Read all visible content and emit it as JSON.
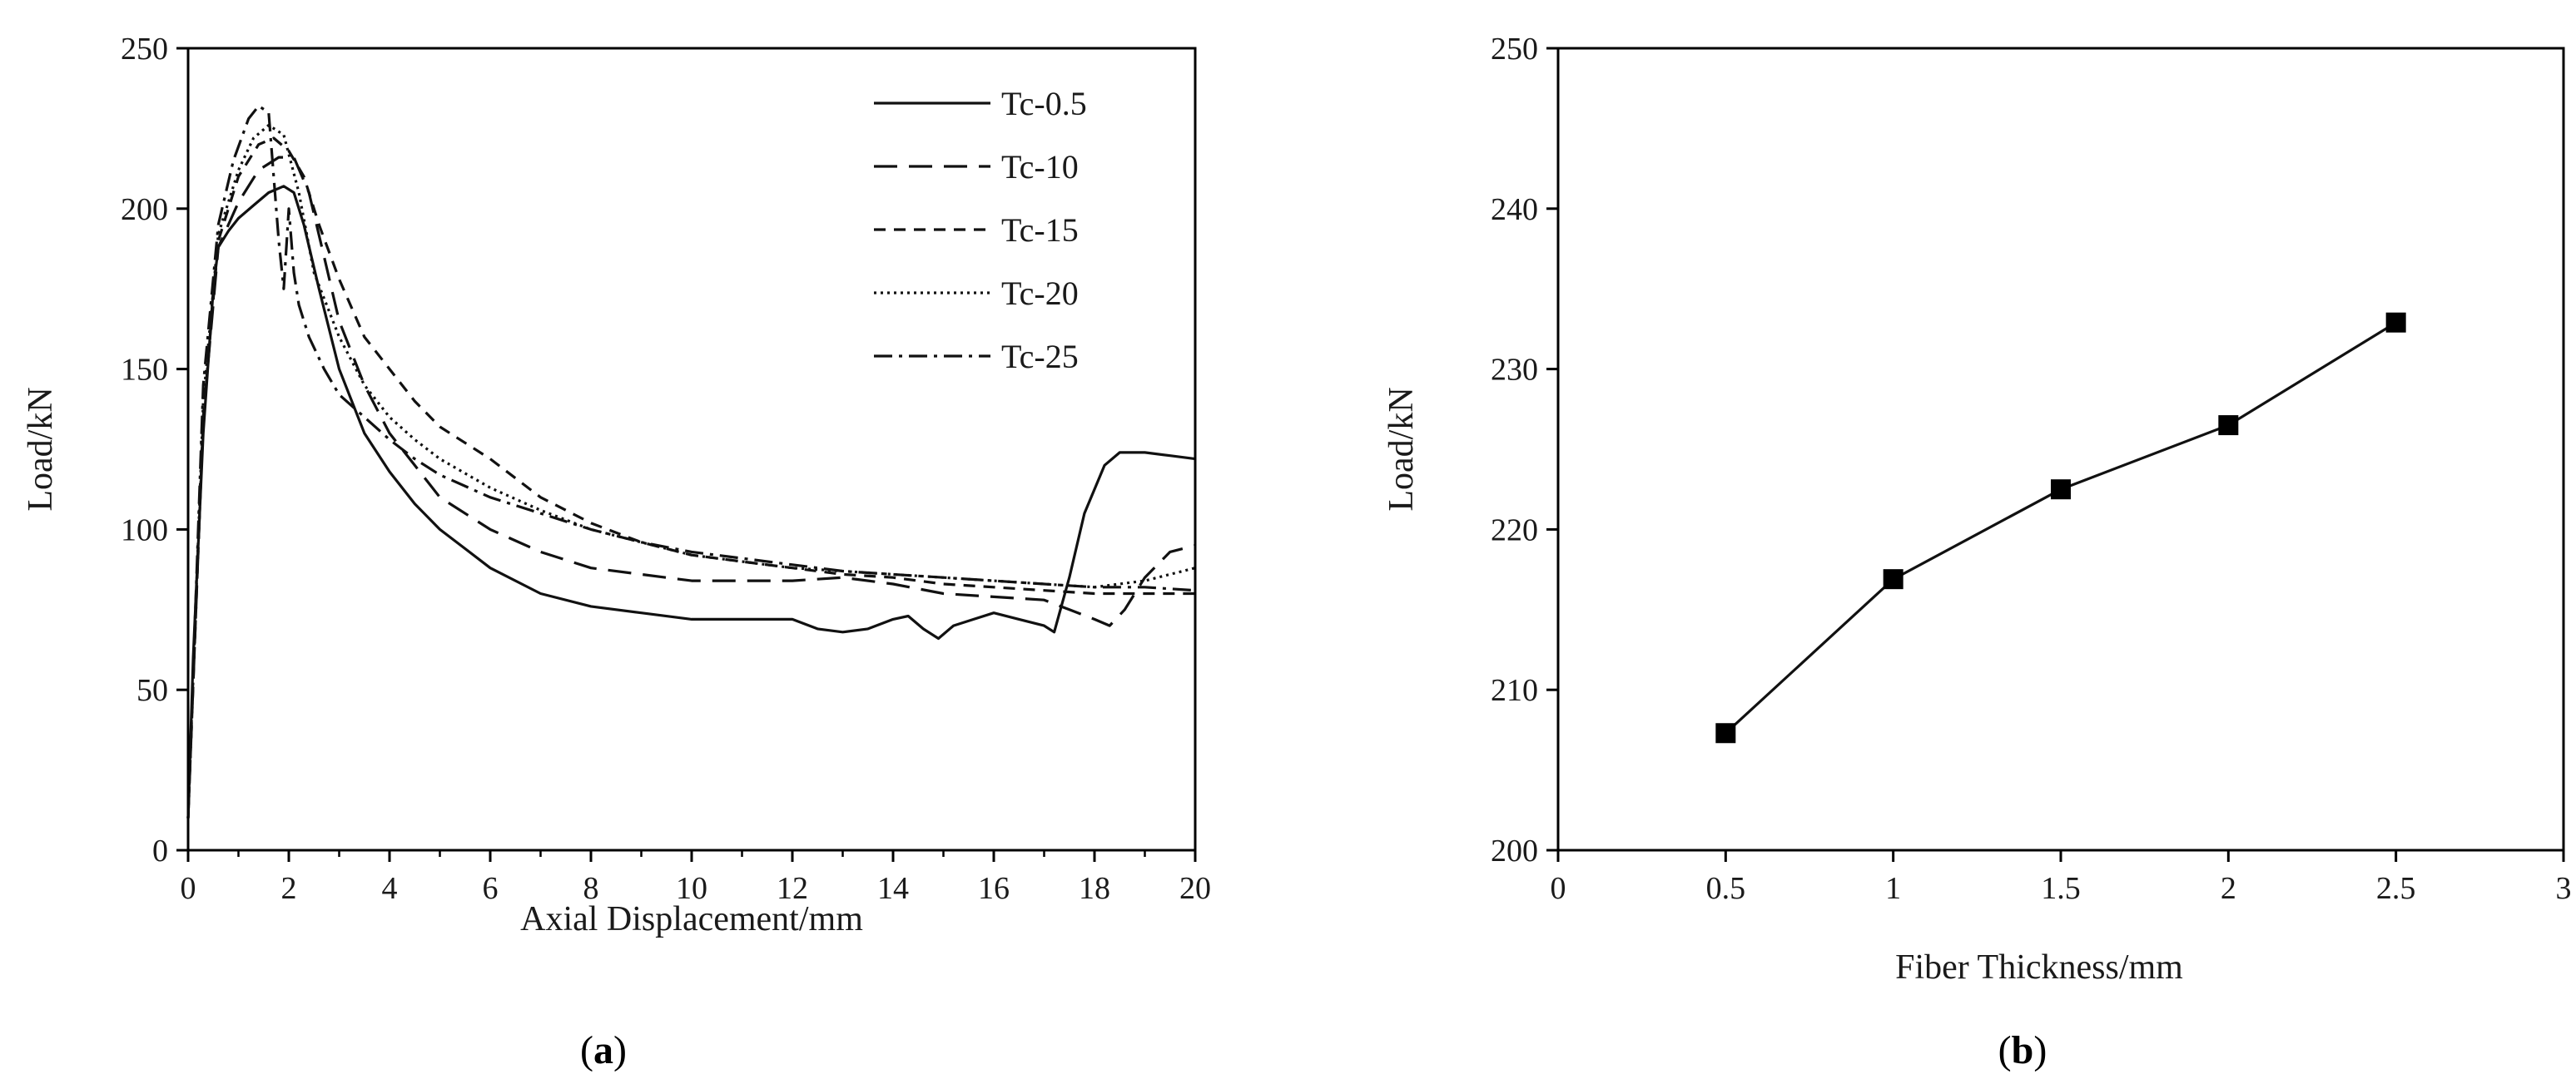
{
  "chart_data": [
    {
      "type": "line",
      "xlabel": "Axial Displacement/mm",
      "ylabel": "Load/kN",
      "xlim": [
        0,
        20
      ],
      "ylim": [
        0,
        250
      ],
      "xticks": [
        0,
        2,
        4,
        6,
        8,
        10,
        12,
        14,
        16,
        18,
        20
      ],
      "yticks": [
        0,
        50,
        100,
        150,
        200,
        250
      ],
      "grid": false,
      "legend": "top-right",
      "panel_label": "a",
      "series": [
        {
          "name": "Tc-0.5",
          "dash": "solid",
          "x": [
            0,
            0.1,
            0.3,
            0.5,
            0.6,
            0.8,
            1.0,
            1.3,
            1.6,
            1.9,
            2.1,
            2.3,
            2.6,
            3.0,
            3.5,
            4.0,
            4.5,
            5.0,
            5.5,
            6.0,
            7.0,
            8.0,
            9.0,
            10.0,
            11.0,
            12.0,
            12.5,
            13.0,
            13.5,
            14.0,
            14.3,
            14.6,
            14.9,
            15.2,
            15.6,
            16.0,
            16.5,
            17.0,
            17.2,
            17.5,
            17.8,
            18.2,
            18.5,
            19.0,
            19.5,
            20.0
          ],
          "y": [
            10,
            60,
            130,
            175,
            188,
            193,
            197,
            201,
            205,
            207,
            205,
            195,
            175,
            150,
            130,
            118,
            108,
            100,
            94,
            88,
            80,
            76,
            74,
            72,
            72,
            72,
            69,
            68,
            69,
            72,
            73,
            69,
            66,
            70,
            72,
            74,
            72,
            70,
            68,
            85,
            105,
            120,
            124,
            124,
            123,
            122
          ]
        },
        {
          "name": "Tc-10",
          "dash": "28,14",
          "x": [
            0,
            0.3,
            0.6,
            1.0,
            1.4,
            1.8,
            2.1,
            2.4,
            2.7,
            3.0,
            3.5,
            4.0,
            4.5,
            5.0,
            6.0,
            7.0,
            8.0,
            9.0,
            10.0,
            11.0,
            12.0,
            13.0,
            14.0,
            15.0,
            16.0,
            17.0,
            17.5,
            18.0,
            18.3,
            18.6,
            19.0,
            19.5,
            20.0
          ],
          "y": [
            10,
            135,
            188,
            202,
            212,
            216,
            216,
            205,
            185,
            165,
            145,
            130,
            120,
            110,
            100,
            93,
            88,
            86,
            84,
            84,
            84,
            85,
            83,
            80,
            79,
            78,
            75,
            72,
            70,
            75,
            85,
            93,
            95
          ]
        },
        {
          "name": "Tc-15",
          "dash": "14,10",
          "x": [
            0,
            0.3,
            0.6,
            1.0,
            1.4,
            1.7,
            2.0,
            2.3,
            2.6,
            3.0,
            3.5,
            4.0,
            4.5,
            5.0,
            6.0,
            7.0,
            8.0,
            9.0,
            10.0,
            11.0,
            12.0,
            13.0,
            14.0,
            15.0,
            16.0,
            17.0,
            18.0,
            19.0,
            20.0
          ],
          "y": [
            10,
            135,
            190,
            210,
            220,
            222,
            218,
            210,
            195,
            178,
            160,
            150,
            140,
            132,
            122,
            110,
            102,
            96,
            92,
            90,
            88,
            86,
            85,
            83,
            82,
            81,
            80,
            80,
            80
          ]
        },
        {
          "name": "Tc-20",
          "dash": "3,5",
          "x": [
            0,
            0.3,
            0.6,
            1.0,
            1.3,
            1.6,
            1.9,
            2.2,
            2.5,
            3.0,
            3.5,
            4.0,
            4.5,
            5.0,
            6.0,
            7.0,
            8.0,
            9.0,
            10.0,
            11.0,
            12.0,
            13.0,
            14.0,
            15.0,
            16.0,
            17.0,
            18.0,
            19.0,
            20.0
          ],
          "y": [
            10,
            140,
            192,
            212,
            222,
            226,
            223,
            205,
            180,
            160,
            145,
            135,
            128,
            122,
            113,
            106,
            100,
            96,
            92,
            90,
            88,
            87,
            86,
            85,
            84,
            83,
            82,
            84,
            88
          ]
        },
        {
          "name": "Tc-25",
          "dash": "22,8,4,8",
          "x": [
            0,
            0.3,
            0.6,
            0.9,
            1.2,
            1.4,
            1.6,
            1.8,
            1.9,
            2.0,
            2.1,
            2.2,
            2.4,
            2.7,
            3.0,
            3.5,
            4.0,
            4.5,
            5.0,
            6.0,
            7.0,
            8.0,
            9.0,
            10.0,
            11.0,
            12.0,
            13.0,
            14.0,
            15.0,
            16.0,
            17.0,
            18.0,
            19.0,
            20.0
          ],
          "y": [
            10,
            145,
            195,
            215,
            228,
            232,
            230,
            190,
            175,
            200,
            180,
            170,
            160,
            150,
            142,
            135,
            128,
            122,
            117,
            110,
            105,
            100,
            96,
            93,
            91,
            89,
            87,
            86,
            85,
            84,
            83,
            82,
            82,
            81
          ]
        }
      ]
    },
    {
      "type": "line",
      "xlabel": "Fiber Thickness/mm",
      "ylabel": "Load/kN",
      "xlim": [
        0,
        3
      ],
      "ylim": [
        200,
        250
      ],
      "xticks": [
        0,
        0.5,
        1,
        1.5,
        2,
        2.5,
        3
      ],
      "xtick_labels": [
        "0",
        "0.5",
        "1",
        "1.5",
        "2",
        "2.5",
        "3"
      ],
      "yticks": [
        200,
        210,
        220,
        230,
        240,
        250
      ],
      "grid": false,
      "marker": "square",
      "panel_label": "b",
      "series": [
        {
          "x": [
            0.5,
            1.0,
            1.5,
            2.0,
            2.5
          ],
          "y": [
            207.3,
            216.9,
            222.5,
            226.5,
            232.9
          ]
        }
      ]
    }
  ]
}
